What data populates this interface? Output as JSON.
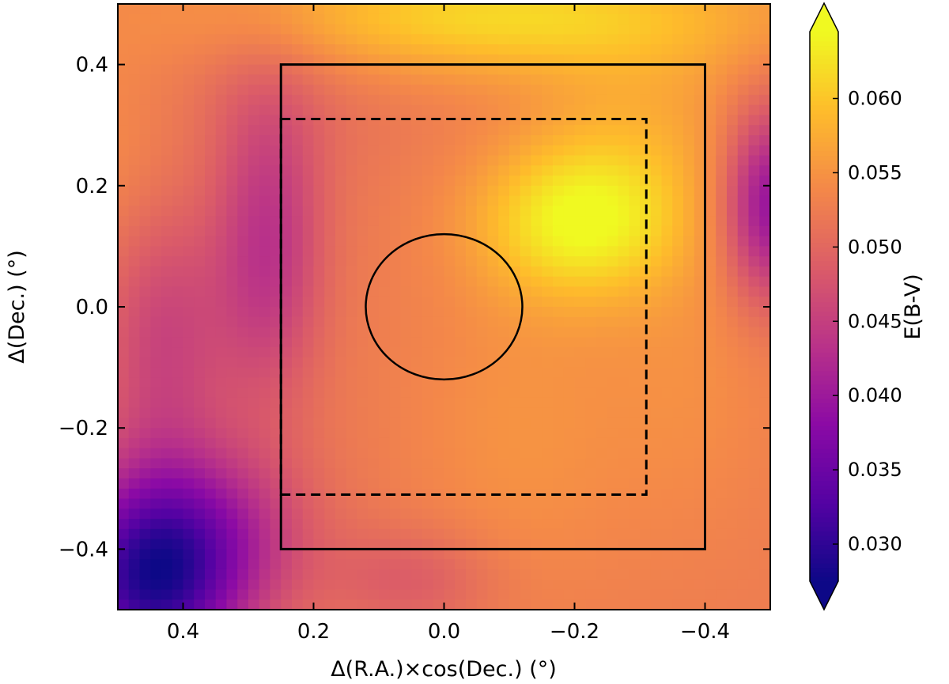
{
  "chart_data": {
    "type": "heatmap",
    "title": "",
    "xlabel": "Δ(R.A.)×cos(Dec.) (°)",
    "ylabel": "Δ(Dec.) (°)",
    "xlim": [
      0.5,
      -0.5
    ],
    "ylim": [
      -0.5,
      0.5
    ],
    "x_ticks": [
      0.4,
      0.2,
      0.0,
      -0.2,
      -0.4
    ],
    "x_tick_labels": [
      "0.4",
      "0.2",
      "0.0",
      "−0.2",
      "−0.4"
    ],
    "y_ticks": [
      0.4,
      0.2,
      0.0,
      -0.2,
      -0.4
    ],
    "y_tick_labels": [
      "0.4",
      "0.2",
      "0.0",
      "−0.2",
      "−0.4"
    ],
    "colorbar": {
      "label": "E(B-V)",
      "colormap": "plasma",
      "range": [
        0.0275,
        0.0645
      ],
      "extend": "both",
      "ticks": [
        0.03,
        0.035,
        0.04,
        0.045,
        0.05,
        0.055,
        0.06
      ],
      "tick_labels": [
        "0.030",
        "0.035",
        "0.040",
        "0.045",
        "0.050",
        "0.055",
        "0.060"
      ]
    },
    "field": {
      "base": 0.0525,
      "components": [
        {
          "x": -0.21,
          "y": 0.14,
          "amp": 0.0115,
          "sx": 0.11,
          "sy": 0.09
        },
        {
          "x": -0.08,
          "y": 0.48,
          "amp": 0.009,
          "sx": 0.3,
          "sy": 0.07
        },
        {
          "x": -0.3,
          "y": 0.3,
          "amp": 0.0035,
          "sx": 0.12,
          "sy": 0.1
        },
        {
          "x": 0.5,
          "y": 0.25,
          "amp": 0.0025,
          "sx": 0.12,
          "sy": 0.15
        },
        {
          "x": 0.45,
          "y": -0.45,
          "amp": -0.022,
          "sx": 0.1,
          "sy": 0.12
        },
        {
          "x": 0.33,
          "y": -0.37,
          "amp": -0.006,
          "sx": 0.1,
          "sy": 0.1
        },
        {
          "x": 0.27,
          "y": 0.1,
          "amp": -0.009,
          "sx": 0.06,
          "sy": 0.18
        },
        {
          "x": 0.43,
          "y": -0.05,
          "amp": -0.007,
          "sx": 0.07,
          "sy": 0.18
        },
        {
          "x": -0.5,
          "y": 0.17,
          "amp": -0.014,
          "sx": 0.05,
          "sy": 0.11
        },
        {
          "x": 0.05,
          "y": -0.45,
          "amp": -0.004,
          "sx": 0.09,
          "sy": 0.06
        },
        {
          "x": 0.28,
          "y": 0.38,
          "amp": -0.002,
          "sx": 0.15,
          "sy": 0.12
        },
        {
          "x": -0.38,
          "y": -0.1,
          "amp": 0.002,
          "sx": 0.1,
          "sy": 0.2
        },
        {
          "x": -0.12,
          "y": -0.2,
          "amp": 0.0025,
          "sx": 0.12,
          "sy": 0.2
        }
      ]
    },
    "overlays": [
      {
        "name": "outer-box",
        "shape": "rectangle",
        "style": "solid",
        "x0": 0.25,
        "x1": -0.4,
        "y0": -0.4,
        "y1": 0.4
      },
      {
        "name": "dashed-box",
        "shape": "rectangle",
        "style": "dashed",
        "x0": 0.25,
        "x1": -0.31,
        "y0": -0.31,
        "y1": 0.31
      },
      {
        "name": "central-circle",
        "shape": "circle",
        "style": "solid",
        "cx": 0.0,
        "cy": 0.0,
        "r": 0.12
      }
    ]
  }
}
